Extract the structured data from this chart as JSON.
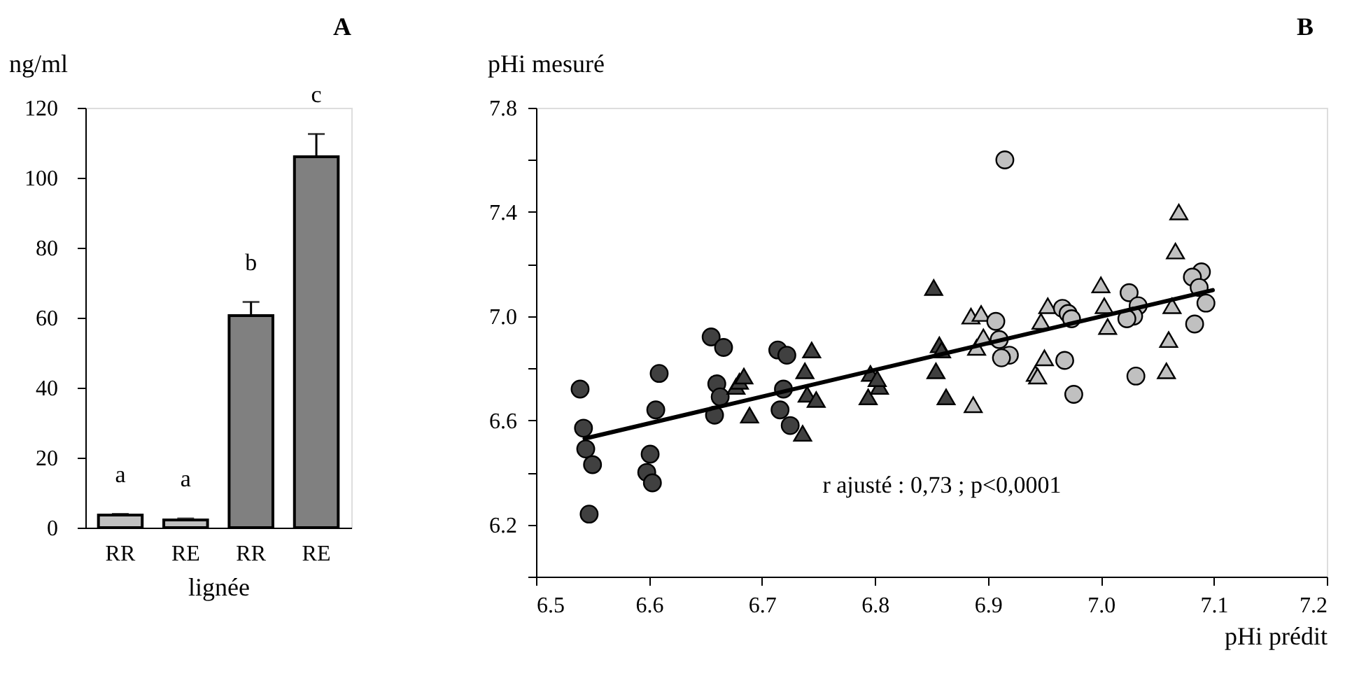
{
  "chart_data": [
    {
      "type": "bar",
      "title": "A",
      "xlabel": "lignée",
      "ylabel": "ng/ml",
      "categories": [
        "RR",
        "RE",
        "RR",
        "RE"
      ],
      "values": [
        3.6,
        2.2,
        60.6,
        106
      ],
      "errors": [
        0.3,
        0.4,
        3.9,
        6.5
      ],
      "colors": [
        "#c0c0c0",
        "#c0c0c0",
        "#808080",
        "#808080"
      ],
      "annotations": [
        "a",
        "a",
        "b",
        "c"
      ],
      "ylim": [
        0,
        120
      ],
      "yticks": [
        0,
        20,
        40,
        60,
        80,
        100,
        120
      ],
      "grid": false,
      "legend": false
    },
    {
      "type": "scatter",
      "title": "B",
      "xlabel": "pHi prédit",
      "ylabel": "pHi mesuré",
      "xlim": [
        6.5,
        7.2
      ],
      "ylim": [
        6.0,
        7.8
      ],
      "xticks": [
        6.5,
        6.6,
        6.7,
        6.8,
        6.9,
        {
          "value": 7.0,
          "label": "7.0"
        },
        7.1,
        7.2
      ],
      "yticks": [
        {
          "value": 6.0,
          "label": null
        },
        6.2,
        {
          "value": 6.4,
          "label": null
        },
        6.6,
        {
          "value": 6.8,
          "label": null
        },
        {
          "value": 7.0,
          "label": "7.0"
        },
        {
          "value": 7.2,
          "label": null
        },
        7.4,
        {
          "value": 7.6,
          "label": null
        },
        7.8
      ],
      "grid": false,
      "legend": false,
      "annotations": [
        "r ajusté : 0,73 ; p<0,0001"
      ],
      "series": [
        {
          "color": "#404040",
          "marker": "circle",
          "x": [
            6.539,
            6.542,
            6.544,
            6.55,
            6.547,
            6.609,
            6.606,
            6.601,
            6.598,
            6.603,
            6.655,
            6.666,
            6.66,
            6.663,
            6.658,
            6.714,
            6.722,
            6.719,
            6.716,
            6.725
          ],
          "values": [
            6.72,
            6.57,
            6.49,
            6.43,
            6.24,
            6.78,
            6.64,
            6.47,
            6.4,
            6.36,
            6.92,
            6.88,
            6.74,
            6.69,
            6.62,
            6.87,
            6.85,
            6.72,
            6.64,
            6.58
          ]
        },
        {
          "color": "#404040",
          "marker": "triangle",
          "x": [
            6.677,
            6.68,
            6.684,
            6.689,
            6.736,
            6.738,
            6.744,
            6.74,
            6.748,
            6.796,
            6.794,
            6.804,
            6.802,
            6.852,
            6.857,
            6.859,
            6.854,
            6.863
          ],
          "values": [
            6.73,
            6.75,
            6.77,
            6.62,
            6.55,
            6.79,
            6.87,
            6.7,
            6.68,
            6.78,
            6.69,
            6.73,
            6.76,
            7.11,
            6.89,
            6.87,
            6.79,
            6.69
          ]
        },
        {
          "color": "#c0c0c0",
          "marker": "triangle",
          "x": [
            6.887,
            6.885,
            6.894,
            6.89,
            6.896,
            6.947,
            6.953,
            6.95,
            6.942,
            6.944,
            7.0,
            7.003,
            7.006,
            7.063,
            7.06,
            7.058,
            7.066,
            7.069
          ],
          "values": [
            6.66,
            7.0,
            7.01,
            6.88,
            6.92,
            6.98,
            7.04,
            6.84,
            6.78,
            6.77,
            7.12,
            7.04,
            6.96,
            7.04,
            6.91,
            6.79,
            7.25,
            7.4
          ]
        },
        {
          "color": "#c0c0c0",
          "marker": "circle",
          "x": [
            6.915,
            6.907,
            6.91,
            6.919,
            6.912,
            6.966,
            6.971,
            6.974,
            6.968,
            6.976,
            7.025,
            7.033,
            7.029,
            7.023,
            7.031,
            7.089,
            7.081,
            7.087,
            7.093,
            7.083
          ],
          "values": [
            7.6,
            6.98,
            6.91,
            6.85,
            6.84,
            7.03,
            7.01,
            6.99,
            6.83,
            6.7,
            7.09,
            7.04,
            7.0,
            6.99,
            6.77,
            7.17,
            7.15,
            7.11,
            7.05,
            6.97
          ]
        },
        {
          "type": "line",
          "color": "#000000",
          "marker": "none",
          "line_style": "solid",
          "x": [
            6.543,
            7.099
          ],
          "values": [
            6.53,
            7.1
          ]
        }
      ]
    }
  ]
}
